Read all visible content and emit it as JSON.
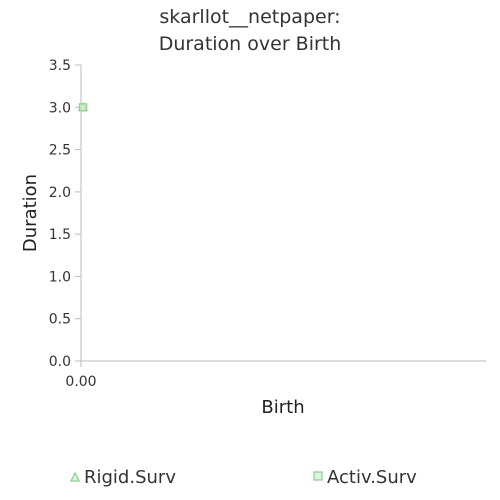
{
  "chart_data": {
    "type": "scatter",
    "title_lines": [
      "skarllot__netpaper:",
      "Duration over Birth"
    ],
    "xlabel": "Birth",
    "ylabel": "Duration",
    "x_tick_labels": [
      "0.00"
    ],
    "y_tick_labels": [
      "0.0",
      "0.5",
      "1.0",
      "1.5",
      "2.0",
      "2.5",
      "3.0",
      "3.5"
    ],
    "y_ticks": [
      0.0,
      0.5,
      1.0,
      1.5,
      2.0,
      2.5,
      3.0,
      3.5
    ],
    "xlim": [
      0,
      1
    ],
    "ylim": [
      0,
      3.5
    ],
    "grid": false,
    "legend_position": "bottom",
    "series": [
      {
        "name": "Rigid.Surv",
        "marker": "triangle",
        "color": "#8fd18f",
        "points": [
          {
            "x": 0,
            "y": 3.0
          }
        ]
      },
      {
        "name": "Activ.Surv",
        "marker": "square",
        "color": "#8fd18f",
        "points": [
          {
            "x": 0,
            "y": 3.0
          }
        ]
      }
    ]
  }
}
